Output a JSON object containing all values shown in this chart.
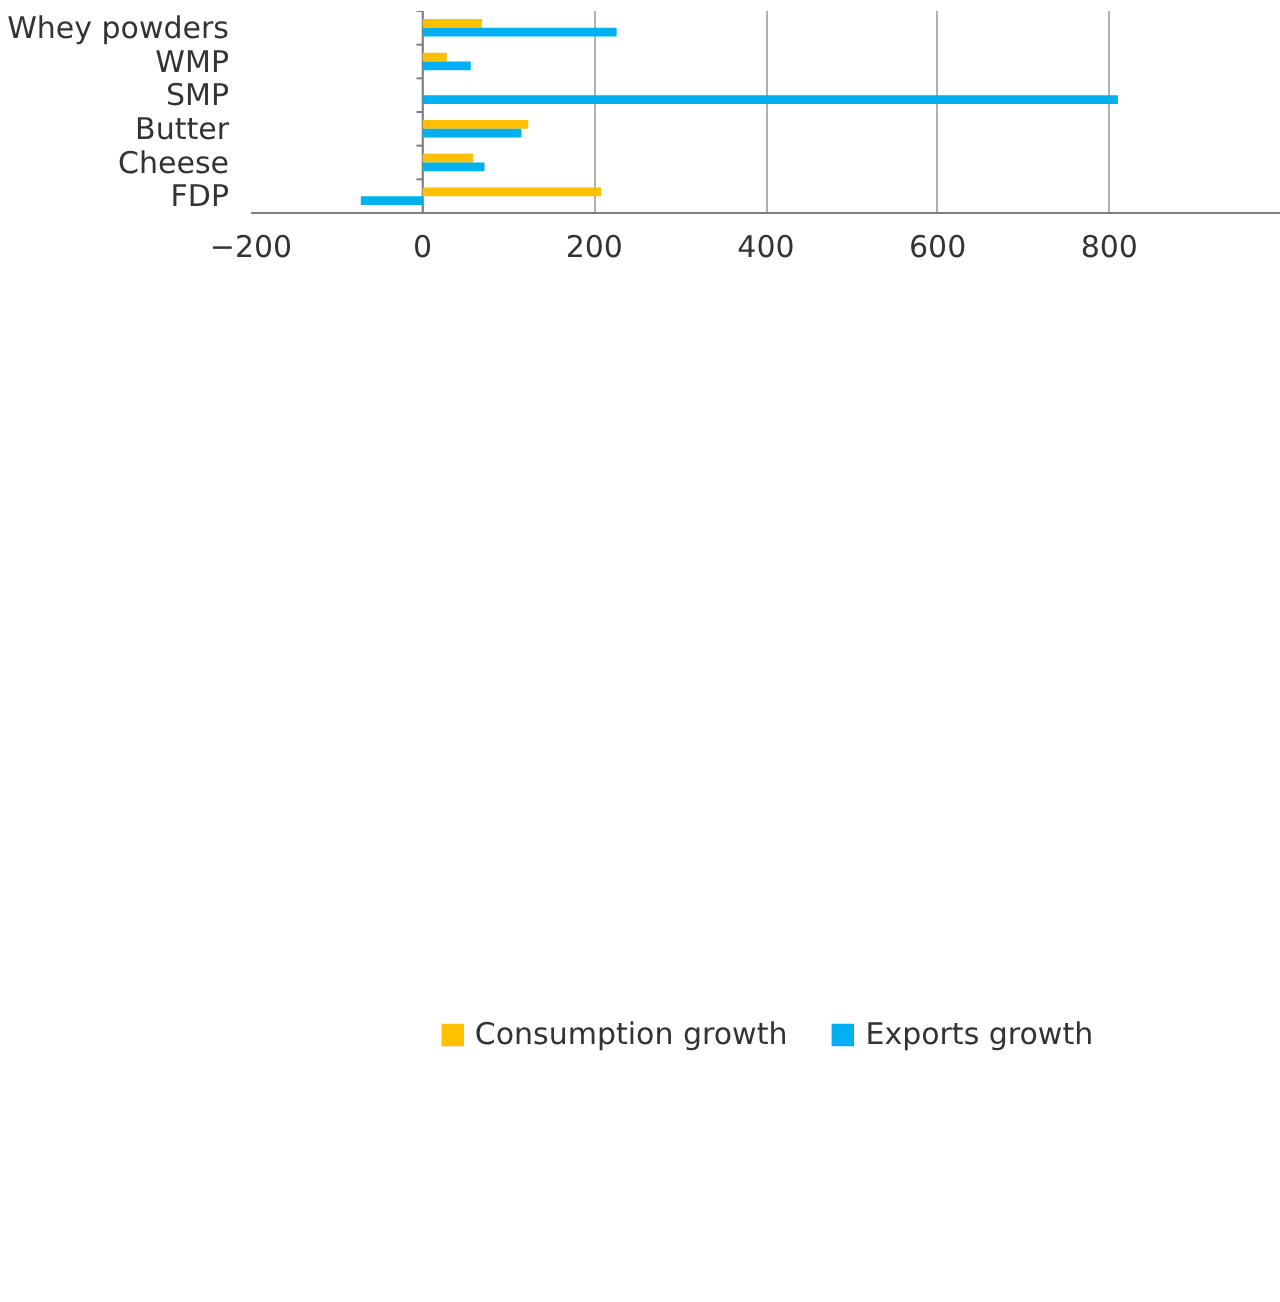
{
  "chart_data": {
    "type": "bar",
    "orientation": "horizontal",
    "categories": [
      "Whey powders",
      "WMP",
      "SMP",
      "Butter",
      "Cheese",
      "FDP"
    ],
    "series": [
      {
        "name": "Consumption growth",
        "color": "#ffc000",
        "values": [
          69,
          28,
          0,
          123,
          59,
          208
        ]
      },
      {
        "name": "Exports growth",
        "color": "#00b0f0",
        "values": [
          226,
          56,
          810,
          115,
          72,
          -72
        ]
      }
    ],
    "xlim": [
      -200,
      1000
    ],
    "xticks": [
      -200,
      0,
      200,
      400,
      600,
      800
    ],
    "grid": "x",
    "legend": "bottom"
  }
}
